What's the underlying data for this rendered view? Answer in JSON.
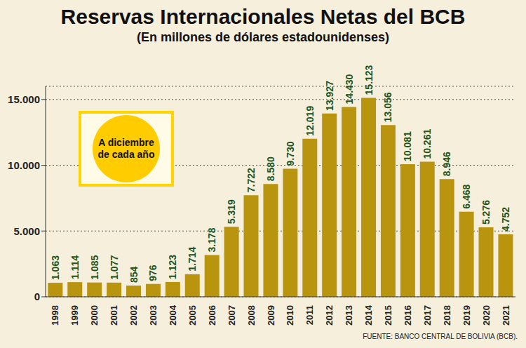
{
  "chart_data": {
    "type": "bar",
    "title": "Reservas Internacionales Netas del BCB",
    "subtitle": "(En millones de dólares estadounidenses)",
    "annotations": [
      "A diciembre de cada año",
      "FUENTE: BANCO CENTRAL DE BOLIVIA (BCB)."
    ],
    "categories": [
      "1998",
      "1999",
      "2000",
      "2001",
      "2002",
      "2003",
      "2004",
      "2005",
      "2006",
      "2007",
      "2008",
      "2009",
      "2010",
      "2011",
      "2012",
      "2013",
      "2014",
      "2015",
      "2016",
      "2017",
      "2018",
      "2019",
      "2020",
      "2021"
    ],
    "values": [
      1063,
      1114,
      1085,
      1077,
      854,
      976,
      1123,
      1714,
      3178,
      5319,
      7722,
      8580,
      9730,
      12019,
      13927,
      14430,
      15123,
      13056,
      10081,
      10261,
      8946,
      6468,
      5276,
      4752
    ],
    "value_labels": [
      "1.063",
      "1.114",
      "1.085",
      "1.077",
      "854",
      "976",
      "1.123",
      "1.714",
      "3.178",
      "5.319",
      "7.722",
      "8.580",
      "9.730",
      "12.019",
      "13.927",
      "14.430",
      "15.123",
      "13.056",
      "10.081",
      "10.261",
      "8.946",
      "6.468",
      "5.276",
      "4.752"
    ],
    "color": "#b8940f",
    "ylim": [
      0,
      16000
    ],
    "yticks": [
      0,
      {
        "value": 5000,
        "label": "5.000"
      },
      {
        "value": 10000,
        "label": "10.000"
      },
      {
        "value": 15000,
        "label": "15.000"
      }
    ],
    "grid": true,
    "data_labels": true
  }
}
